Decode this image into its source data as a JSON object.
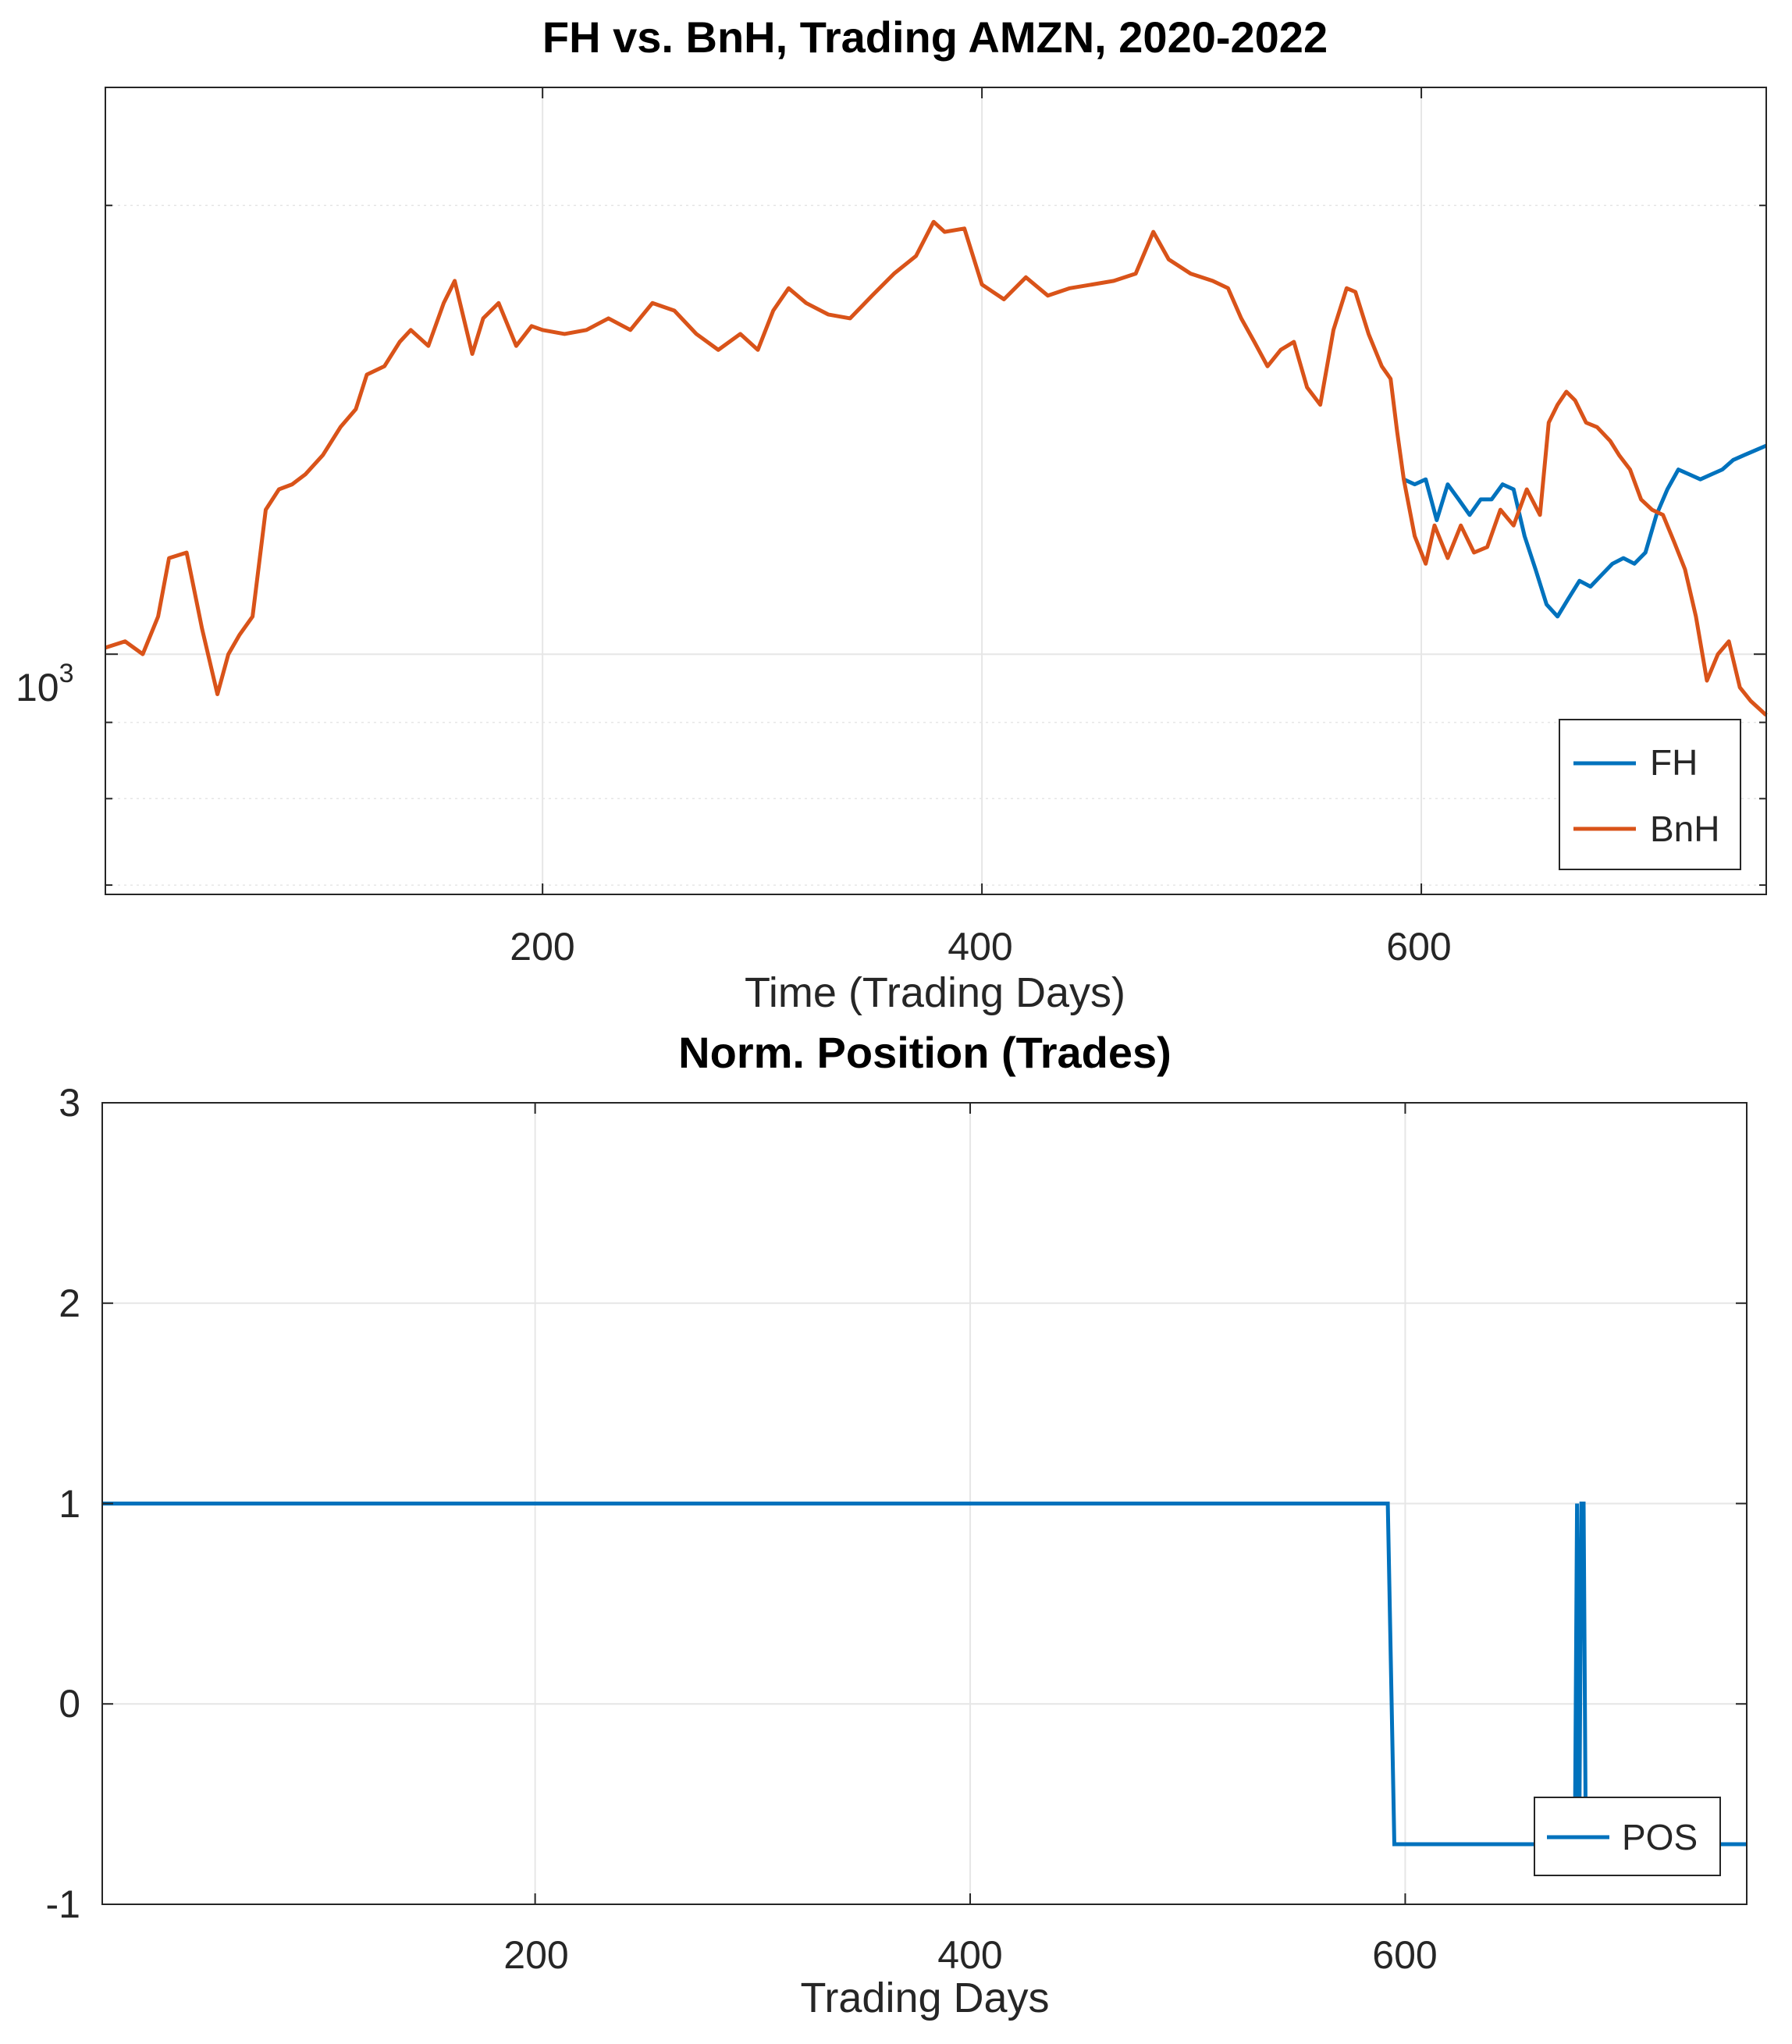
{
  "chart_data": [
    {
      "type": "line",
      "title": "FH vs. BnH, Trading AMZN, 2020-2022",
      "xlabel": "Time (Trading Days)",
      "ylabel": "",
      "yscale": "log",
      "xlim": [
        1,
        757
      ],
      "ylim": [
        690,
        2400
      ],
      "xticks": [
        200,
        400,
        600
      ],
      "ytick_label": {
        "base": "10",
        "exp": "3",
        "value": 1000
      },
      "grid": true,
      "legend": {
        "location": "bottom-right",
        "entries": [
          "FH",
          "BnH"
        ]
      },
      "series": [
        {
          "name": "BnH",
          "color": "#D95319",
          "x": [
            1,
            10,
            18,
            25,
            30,
            38,
            45,
            52,
            57,
            62,
            68,
            74,
            80,
            86,
            92,
            100,
            108,
            115,
            120,
            128,
            135,
            140,
            148,
            155,
            160,
            168,
            173,
            180,
            188,
            195,
            200,
            210,
            220,
            230,
            240,
            250,
            260,
            270,
            280,
            290,
            298,
            305,
            312,
            320,
            330,
            340,
            350,
            360,
            370,
            378,
            383,
            392,
            400,
            410,
            420,
            430,
            440,
            450,
            460,
            470,
            478,
            485,
            495,
            505,
            512,
            518,
            524,
            530,
            536,
            542,
            548,
            554,
            560,
            566,
            570,
            576,
            582,
            586,
            589,
            592,
            597,
            602,
            606,
            612,
            618,
            624,
            630,
            636,
            642,
            648,
            654,
            658,
            662,
            666,
            670,
            675,
            680,
            686,
            690,
            695,
            700,
            705,
            710,
            715,
            720,
            725,
            730,
            735,
            740,
            745,
            750,
            757
          ],
          "values": [
            1010,
            1020,
            1000,
            1060,
            1160,
            1170,
            1040,
            940,
            1000,
            1030,
            1060,
            1250,
            1290,
            1300,
            1320,
            1360,
            1420,
            1460,
            1540,
            1560,
            1620,
            1650,
            1610,
            1720,
            1780,
            1590,
            1680,
            1720,
            1610,
            1660,
            1650,
            1640,
            1650,
            1680,
            1650,
            1720,
            1700,
            1640,
            1600,
            1640,
            1600,
            1700,
            1760,
            1720,
            1690,
            1680,
            1740,
            1800,
            1850,
            1950,
            1920,
            1930,
            1770,
            1730,
            1790,
            1740,
            1760,
            1770,
            1780,
            1800,
            1920,
            1840,
            1800,
            1780,
            1760,
            1680,
            1620,
            1560,
            1600,
            1620,
            1510,
            1470,
            1650,
            1760,
            1750,
            1640,
            1560,
            1530,
            1410,
            1310,
            1200,
            1150,
            1220,
            1160,
            1220,
            1170,
            1180,
            1250,
            1220,
            1290,
            1240,
            1430,
            1470,
            1500,
            1480,
            1430,
            1420,
            1390,
            1360,
            1330,
            1270,
            1250,
            1240,
            1190,
            1140,
            1060,
            960,
            1000,
            1020,
            950,
            930,
            910
          ]
        },
        {
          "name": "FH",
          "color": "#0072BD",
          "x": [
            592,
            597,
            602,
            607,
            612,
            617,
            622,
            627,
            632,
            637,
            642,
            647,
            652,
            657,
            662,
            667,
            672,
            677,
            682,
            687,
            692,
            697,
            702,
            707,
            712,
            717,
            722,
            727,
            732,
            737,
            742,
            747,
            752,
            757
          ],
          "values": [
            1310,
            1300,
            1310,
            1230,
            1300,
            1270,
            1240,
            1270,
            1270,
            1300,
            1290,
            1200,
            1140,
            1080,
            1060,
            1090,
            1120,
            1110,
            1130,
            1150,
            1160,
            1150,
            1170,
            1240,
            1290,
            1330,
            1320,
            1310,
            1320,
            1330,
            1350,
            1360,
            1370,
            1380
          ]
        }
      ]
    },
    {
      "type": "line",
      "title": "Norm. Position (Trades)",
      "xlabel": "Trading Days",
      "ylabel": "",
      "xlim": [
        1,
        757
      ],
      "ylim": [
        -1,
        3
      ],
      "xticks": [
        200,
        400,
        600
      ],
      "yticks": [
        -1,
        0,
        1,
        2,
        3
      ],
      "ytick_labels": [
        "-1",
        "0",
        "1",
        "2",
        "3"
      ],
      "grid": true,
      "legend": {
        "location": "bottom-right",
        "entries": [
          "POS"
        ]
      },
      "series": [
        {
          "name": "POS",
          "color": "#0072BD",
          "x": [
            1,
            592,
            595,
            678,
            679,
            680,
            681,
            682,
            683,
            757
          ],
          "values": [
            1,
            1,
            -0.7,
            -0.7,
            1,
            -0.7,
            1,
            1,
            -0.7,
            -0.7
          ]
        }
      ]
    }
  ]
}
